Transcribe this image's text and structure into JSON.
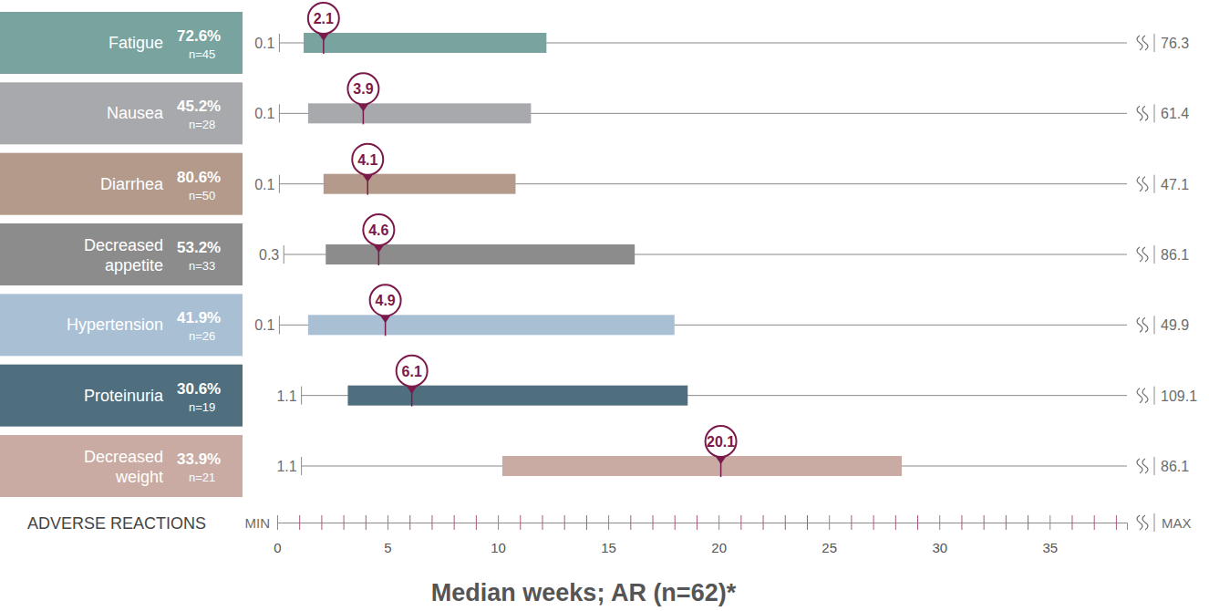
{
  "chart_data": {
    "type": "range",
    "orientation": "horizontal",
    "title": "Median weeks; AR (n=62)*",
    "y_label": "ADVERSE REACTIONS",
    "x_min_label": "MIN",
    "x_max_label": "MAX",
    "categories": [
      "Fatigue",
      "Nausea",
      "Diarrhea",
      "Decreased appetite",
      "Hypertension",
      "Proteinuria",
      "Decreased weight"
    ],
    "percent_labels": [
      "72.6%",
      "45.2%",
      "80.6%",
      "53.2%",
      "41.9%",
      "30.6%",
      "33.9%"
    ],
    "n_labels": [
      "n=45",
      "n=28",
      "n=50",
      "n=33",
      "n=26",
      "n=19",
      "n=21"
    ],
    "min": [
      0.1,
      0.1,
      0.1,
      0.3,
      0.1,
      1.1,
      1.1
    ],
    "q1": [
      1.2,
      1.4,
      2.1,
      2.2,
      1.4,
      3.2,
      10.2
    ],
    "median": [
      2.1,
      3.9,
      4.1,
      4.6,
      4.9,
      6.1,
      20.1
    ],
    "q3": [
      12.2,
      11.5,
      10.8,
      16.2,
      18.0,
      18.6,
      28.3
    ],
    "max": [
      76.3,
      61.4,
      47.1,
      86.1,
      49.9,
      109.1,
      86.1
    ],
    "colors": [
      "#79a39e",
      "#a7a9ac",
      "#b49a8b",
      "#8c8c8c",
      "#a9bfd4",
      "#4f6f7f",
      "#c9aba3"
    ],
    "data_labels": true,
    "xlim": [
      0,
      38.5
    ],
    "xticks": [
      0,
      5,
      10,
      15,
      20,
      25,
      30,
      35
    ],
    "xticks_minor": [
      1,
      2,
      3,
      4,
      6,
      7,
      8,
      9,
      11,
      12,
      13,
      14,
      16,
      17,
      18,
      19,
      21,
      22,
      23,
      24,
      26,
      27,
      28,
      29,
      31,
      32,
      33,
      34,
      36,
      37,
      38
    ]
  }
}
